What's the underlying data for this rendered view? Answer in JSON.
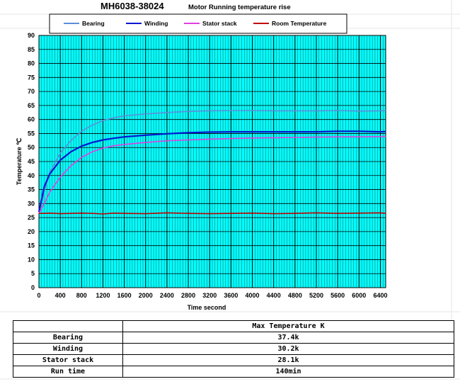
{
  "chart_data": {
    "type": "line",
    "title": "MH6038-38024",
    "subtitle": "Motor Running temperature rise",
    "xlabel": "Time second",
    "ylabel": "Temperature ℃",
    "xlim": [
      0,
      6500
    ],
    "ylim": [
      0,
      90
    ],
    "x_ticks": [
      0,
      400,
      800,
      1200,
      1600,
      2000,
      2400,
      2800,
      3200,
      3600,
      4000,
      4400,
      4800,
      5200,
      5600,
      6000,
      6400
    ],
    "y_ticks": [
      0,
      5,
      10,
      15,
      20,
      25,
      30,
      35,
      40,
      45,
      50,
      55,
      60,
      65,
      70,
      75,
      80,
      85,
      90
    ],
    "grid": true,
    "plot_background": "#00ffff",
    "legend_position": "top",
    "x": [
      0,
      100,
      200,
      400,
      600,
      800,
      1000,
      1200,
      1400,
      1600,
      2000,
      2400,
      2800,
      3200,
      3600,
      4000,
      4400,
      4800,
      5200,
      5600,
      6000,
      6400,
      6500
    ],
    "series": [
      {
        "name": "Bearing",
        "color": "#5b8fd9",
        "values": [
          26.5,
          34,
          41,
          48,
          52.5,
          55.8,
          58,
          59.6,
          60.6,
          61.3,
          62,
          62.5,
          62.9,
          63.1,
          63.2,
          63.2,
          63.1,
          63.1,
          63.1,
          63.2,
          63,
          63.1,
          63.2
        ]
      },
      {
        "name": "Winding",
        "color": "#0018d0",
        "values": [
          27,
          36,
          40.5,
          45.5,
          48.5,
          50.5,
          51.8,
          52.7,
          53.3,
          53.8,
          54.4,
          54.9,
          55.3,
          55.5,
          55.6,
          55.6,
          55.6,
          55.6,
          55.6,
          55.8,
          55.8,
          55.6,
          55.7
        ]
      },
      {
        "name": "Stator stack",
        "color": "#e040e0",
        "values": [
          26.5,
          30,
          34,
          39.5,
          43.5,
          46.5,
          48.5,
          49.8,
          50.6,
          51.1,
          51.8,
          52.4,
          52.7,
          53,
          53.2,
          53.4,
          53.5,
          53.6,
          53.7,
          53.8,
          53.8,
          53.9,
          54
        ]
      },
      {
        "name": "Room Temperature",
        "color": "#c00000",
        "values": [
          26.5,
          26.5,
          26.6,
          26.4,
          26.5,
          26.6,
          26.5,
          26.3,
          26.6,
          26.5,
          26.4,
          26.7,
          26.5,
          26.4,
          26.5,
          26.6,
          26.4,
          26.5,
          26.7,
          26.5,
          26.6,
          26.7,
          26.5
        ]
      }
    ]
  },
  "table": {
    "header": "Max Temperature K",
    "rows": [
      {
        "label": "Bearing",
        "value": "37.4k"
      },
      {
        "label": "Winding",
        "value": "30.2k"
      },
      {
        "label": "Stator stack",
        "value": "28.1k"
      },
      {
        "label": "Run time",
        "value": "140min"
      }
    ]
  }
}
